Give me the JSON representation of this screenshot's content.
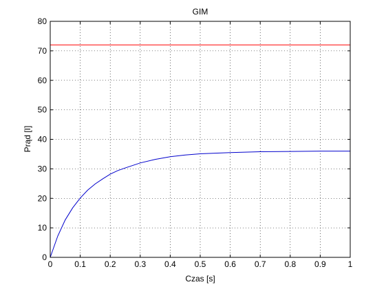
{
  "chart_data": {
    "type": "line",
    "title": "GIM",
    "xlabel": "Czas [s]",
    "ylabel": "Prąd [I]",
    "xlim": [
      0,
      1
    ],
    "ylim": [
      0,
      80
    ],
    "x_ticks": [
      "0",
      "0.1",
      "0.2",
      "0.3",
      "0.4",
      "0.5",
      "0.6",
      "0.7",
      "0.8",
      "0.9",
      "1"
    ],
    "y_ticks": [
      "0",
      "10",
      "20",
      "30",
      "40",
      "50",
      "60",
      "70",
      "80"
    ],
    "grid": true,
    "series": [
      {
        "color": "#ff0000",
        "x": [
          0,
          1
        ],
        "y": [
          72,
          72
        ]
      },
      {
        "color": "#0000cc",
        "x": [
          0,
          0.025,
          0.05,
          0.075,
          0.1,
          0.125,
          0.15,
          0.175,
          0.2,
          0.225,
          0.25,
          0.3,
          0.35,
          0.4,
          0.45,
          0.5,
          0.6,
          0.7,
          0.8,
          0.9,
          1.0
        ],
        "y": [
          0,
          7.2,
          12.7,
          16.8,
          20.1,
          22.8,
          24.9,
          26.6,
          28.2,
          29.4,
          30.3,
          32.0,
          33.2,
          34.1,
          34.7,
          35.1,
          35.5,
          35.8,
          35.9,
          36.0,
          36.0
        ]
      }
    ]
  }
}
